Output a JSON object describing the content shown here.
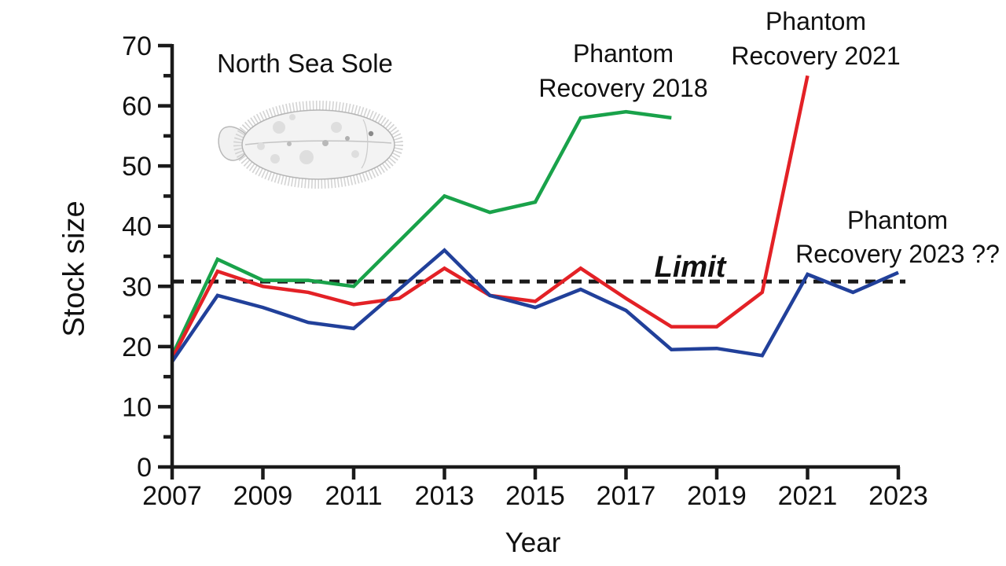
{
  "chart_data": {
    "type": "line",
    "title": "North Sea Sole",
    "xlabel": "Year",
    "ylabel": "Stock size",
    "xlim": [
      2007,
      2023
    ],
    "ylim": [
      0,
      70
    ],
    "grid": false,
    "legend_position": "annotations-inline",
    "x_ticks": [
      2007,
      2009,
      2011,
      2013,
      2015,
      2017,
      2019,
      2021,
      2023
    ],
    "y_ticks": [
      0,
      10,
      20,
      30,
      40,
      50,
      60,
      70
    ],
    "y_minor_ticks": [
      5,
      15,
      25,
      35,
      45,
      55,
      65
    ],
    "series": [
      {
        "name": "Phantom Recovery 2018",
        "color": "#19a24a",
        "years": [
          2007,
          2008,
          2009,
          2010,
          2011,
          2012,
          2013,
          2014,
          2015,
          2016,
          2017,
          2018
        ],
        "values": [
          18.5,
          34.5,
          31,
          31,
          30,
          37.5,
          45,
          42.3,
          44,
          58,
          59,
          58
        ]
      },
      {
        "name": "Phantom Recovery 2021",
        "color": "#e32126",
        "years": [
          2007,
          2008,
          2009,
          2010,
          2011,
          2012,
          2013,
          2014,
          2015,
          2016,
          2017,
          2018,
          2019,
          2020,
          2021
        ],
        "values": [
          18,
          32.5,
          30,
          29,
          27,
          28,
          33,
          28.5,
          27.5,
          33,
          28,
          23.3,
          23.3,
          29,
          65
        ]
      },
      {
        "name": "Phantom Recovery 2023 ??",
        "color": "#21409a",
        "years": [
          2007,
          2008,
          2009,
          2010,
          2011,
          2012,
          2013,
          2014,
          2015,
          2016,
          2017,
          2018,
          2019,
          2020,
          2021,
          2022,
          2023
        ],
        "values": [
          17.5,
          28.5,
          26.5,
          24,
          23,
          29.5,
          36,
          28.5,
          26.5,
          29.5,
          26,
          19.5,
          19.7,
          18.5,
          32,
          29,
          32.3
        ]
      }
    ],
    "limit_line": {
      "label": "Limit",
      "value": 30.8,
      "color": "#1a1a1a",
      "style": "dashed"
    }
  },
  "annotations": {
    "title": "North Sea Sole",
    "r2018": {
      "line1": "Phantom",
      "line2": "Recovery 2018"
    },
    "r2021": {
      "line1": "Phantom",
      "line2": "Recovery 2021"
    },
    "r2023": {
      "line1": "Phantom",
      "line2": "Recovery 2023 ??"
    },
    "limit_label": "Limit",
    "ylabel": "Stock size",
    "xlabel": "Year"
  },
  "colors": {
    "axis": "#1a1a1a",
    "text": "#111111",
    "green_series": "#19a24a",
    "red_series": "#e32126",
    "blue_series": "#21409a",
    "limit": "#1a1a1a",
    "background": "#ffffff"
  }
}
